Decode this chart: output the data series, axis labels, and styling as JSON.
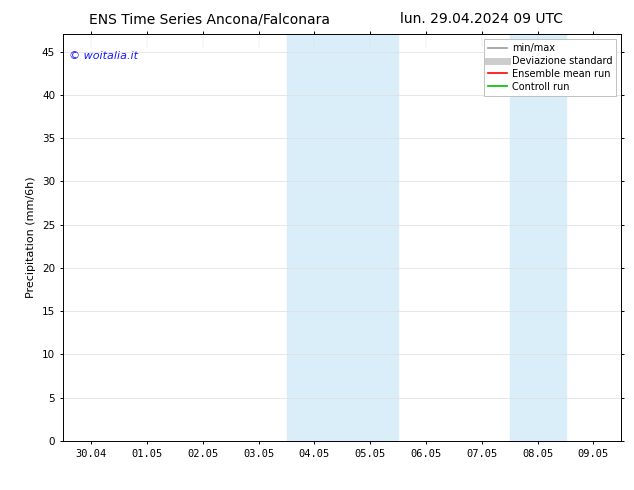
{
  "title_left": "ENS Time Series Ancona/Falconara",
  "title_right": "lun. 29.04.2024 09 UTC",
  "ylabel": "Precipitation (mm/6h)",
  "watermark": "© woitalia.it",
  "watermark_color": "#1a1aff",
  "ylim": [
    0,
    47
  ],
  "yticks": [
    0,
    5,
    10,
    15,
    20,
    25,
    30,
    35,
    40,
    45
  ],
  "xtick_labels": [
    "30.04",
    "01.05",
    "02.05",
    "03.05",
    "04.05",
    "05.05",
    "06.05",
    "07.05",
    "08.05",
    "09.05"
  ],
  "shade_regions": [
    {
      "xmin": 4,
      "xmax": 5,
      "color": "#daeef9"
    },
    {
      "xmin": 5,
      "xmax": 6,
      "color": "#daeef9"
    },
    {
      "xmin": 8,
      "xmax": 9,
      "color": "#daeef9"
    }
  ],
  "legend_items": [
    {
      "label": "min/max",
      "color": "#999999",
      "lw": 1.2,
      "style": "solid"
    },
    {
      "label": "Deviazione standard",
      "color": "#cccccc",
      "lw": 5,
      "style": "solid"
    },
    {
      "label": "Ensemble mean run",
      "color": "#ff0000",
      "lw": 1.2,
      "style": "solid"
    },
    {
      "label": "Controll run",
      "color": "#00bb00",
      "lw": 1.2,
      "style": "solid"
    }
  ],
  "background_color": "#ffffff",
  "plot_bg_color": "#ffffff",
  "title_fontsize": 10,
  "label_fontsize": 8,
  "tick_fontsize": 7.5,
  "legend_fontsize": 7,
  "watermark_fontsize": 8
}
